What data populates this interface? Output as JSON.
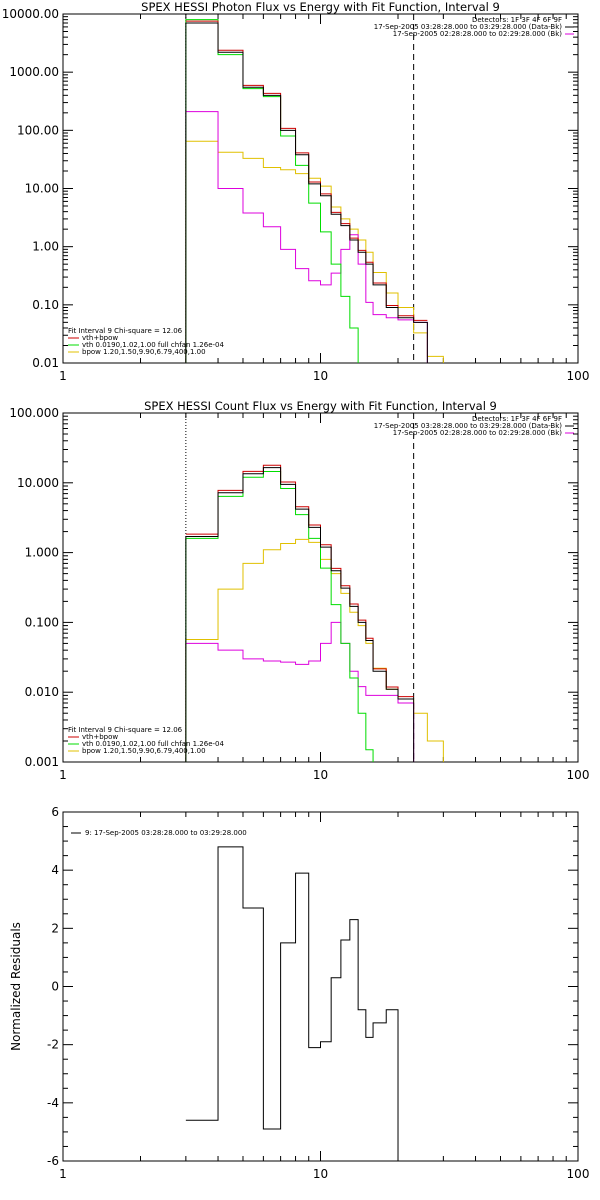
{
  "colors": {
    "background": "#ffffff",
    "axes": "#000000",
    "total": "#000000",
    "data_red": "#cc0000",
    "vth": "#00dd00",
    "bpow": "#e0c000",
    "background_spectrum": "#dd00dd",
    "fit_limits": "#000000"
  },
  "chart_data": [
    {
      "type": "line",
      "panel": "photon",
      "title": "SPEX HESSI Photon Flux vs Energy with Fit Function, Interval 9",
      "xlabel": "",
      "ylabel": "",
      "xscale": "log",
      "yscale": "log",
      "xlim": [
        1,
        100
      ],
      "ylim": [
        0.01,
        10000
      ],
      "x_ticks": [
        "1",
        "10",
        "100"
      ],
      "y_ticks": [
        "10000.00",
        "1000.00",
        "100.00",
        "10.00",
        "1.00",
        "0.10",
        "0.01"
      ],
      "header": [
        "Detectors: 1F 3F 4F 6F 9F",
        "17-Sep-2005 03:28:28.000 to 03:29:28.000 (Data-Bk)",
        "17-Sep-2005 02:28:28.000 to 02:29:28.000 (Bk)"
      ],
      "legend": {
        "placement": "bottom-left",
        "fit_line": "Fit Interval 9   Chi-square = 12.06",
        "entries": [
          "vth+bpow",
          "vth 0.0190,1.02,1.00  full chfan 1.26e-04",
          "bpow 1.20,1.50,9.90,6.79,400,1.00"
        ]
      },
      "fit_limits": [
        3,
        23
      ],
      "bin_edges": [
        3,
        4,
        5,
        6,
        7,
        8,
        9,
        10,
        11,
        12,
        13,
        14,
        15,
        16,
        18,
        20,
        23,
        26,
        30
      ],
      "series": [
        {
          "name": "vth+bpow",
          "color_key": "total",
          "values": [
            7000,
            2200,
            550,
            400,
            100,
            38,
            12,
            7.5,
            3.6,
            2.3,
            1.3,
            0.8,
            0.5,
            0.22,
            0.09,
            0.06,
            0.05
          ]
        },
        {
          "name": "vth",
          "color_key": "vth",
          "values": [
            8000,
            2000,
            520,
            380,
            80,
            25,
            5.6,
            1.8,
            0.5,
            0.14,
            0.04,
            0.008
          ]
        },
        {
          "name": "bpow",
          "color_key": "bpow",
          "values": [
            65,
            42,
            33,
            23,
            21,
            18,
            15,
            11,
            4.8,
            3.0,
            2.0,
            1.3,
            0.8,
            0.36,
            0.16,
            0.09,
            0.033,
            0.013
          ]
        },
        {
          "color_key": "background_spectrum",
          "values": [
            210,
            10,
            3.8,
            2.2,
            0.9,
            0.42,
            0.26,
            0.22,
            0.35,
            0.9,
            1.6,
            0.5,
            0.11,
            0.068,
            0.06,
            0.055,
            0.05
          ]
        }
      ]
    },
    {
      "type": "line",
      "panel": "count",
      "title": "SPEX HESSI Count Flux vs Energy with Fit Function, Interval 9",
      "xlabel": "",
      "ylabel": "",
      "xscale": "log",
      "yscale": "log",
      "xlim": [
        1,
        100
      ],
      "ylim": [
        0.001,
        100
      ],
      "x_ticks": [
        "1",
        "10",
        "100"
      ],
      "y_ticks": [
        "100.000",
        "10.000",
        "1.000",
        "0.100",
        "0.010",
        "0.001"
      ],
      "header": [
        "Detectors: 1F 3F 4F 6F 9F",
        "17-Sep-2005 03:28:28.000 to 03:29:28.000 (Data-Bk)",
        "17-Sep-2005 02:28:28.000 to 02:29:28.000 (Bk)"
      ],
      "legend": {
        "placement": "bottom-left",
        "fit_line": "Fit Interval 9   Chi-square = 12.06",
        "entries": [
          "vth+bpow",
          "vth 0.0190,1.02,1.00  full chfan 1.26e-04",
          "bpow 1.20,1.50,9.90,6.79,400,1.00"
        ]
      },
      "fit_limits": [
        3,
        23
      ],
      "bin_edges": [
        3,
        4,
        5,
        6,
        7,
        8,
        9,
        10,
        11,
        12,
        13,
        14,
        15,
        16,
        18,
        20,
        23,
        26,
        30
      ],
      "series": [
        {
          "name": "vth+bpow",
          "color_key": "total",
          "values": [
            1.7,
            7.2,
            13.5,
            16.5,
            9.5,
            4.2,
            2.3,
            1.2,
            0.55,
            0.31,
            0.17,
            0.1,
            0.055,
            0.02,
            0.011,
            0.008
          ]
        },
        {
          "name": "vth",
          "color_key": "vth",
          "values": [
            1.6,
            6.4,
            12,
            14.5,
            8.3,
            3.5,
            1.6,
            0.6,
            0.18,
            0.05,
            0.016,
            0.005,
            0.0015
          ]
        },
        {
          "name": "bpow",
          "color_key": "bpow",
          "values": [
            0.057,
            0.3,
            0.7,
            1.1,
            1.35,
            1.55,
            1.4,
            0.8,
            0.5,
            0.26,
            0.14,
            0.09,
            0.05,
            0.022,
            0.011,
            0.008,
            0.005,
            0.002
          ]
        },
        {
          "color_key": "background_spectrum",
          "values": [
            0.05,
            0.04,
            0.03,
            0.028,
            0.027,
            0.025,
            0.028,
            0.05,
            0.1,
            0.05,
            0.02,
            0.012,
            0.009,
            0.009,
            0.009,
            0.007
          ]
        }
      ]
    },
    {
      "type": "line",
      "panel": "residuals",
      "title": "",
      "xlabel": "",
      "ylabel": "Normalized Residuals",
      "xscale": "log",
      "yscale": "linear",
      "xlim": [
        1,
        100
      ],
      "ylim": [
        -6,
        6
      ],
      "x_ticks": [
        "1",
        "10",
        "100"
      ],
      "y_ticks": [
        "6",
        "4",
        "2",
        "0",
        "-2",
        "-4",
        "-6"
      ],
      "legend": {
        "placement": "top-left",
        "entries": [
          "9: 17-Sep-2005 03:28:28.000 to 03:29:28.000"
        ]
      },
      "bin_edges": [
        3,
        4,
        5,
        6,
        7,
        8,
        9,
        10,
        11,
        12,
        13,
        14,
        15,
        16,
        18,
        20,
        23
      ],
      "series": [
        {
          "color_key": "total",
          "values": [
            -4.6,
            4.8,
            2.7,
            -4.9,
            1.5,
            3.9,
            -2.1,
            -1.9,
            0.3,
            1.6,
            2.3,
            -0.8,
            -1.75,
            -1.25,
            -0.8
          ]
        }
      ]
    }
  ]
}
